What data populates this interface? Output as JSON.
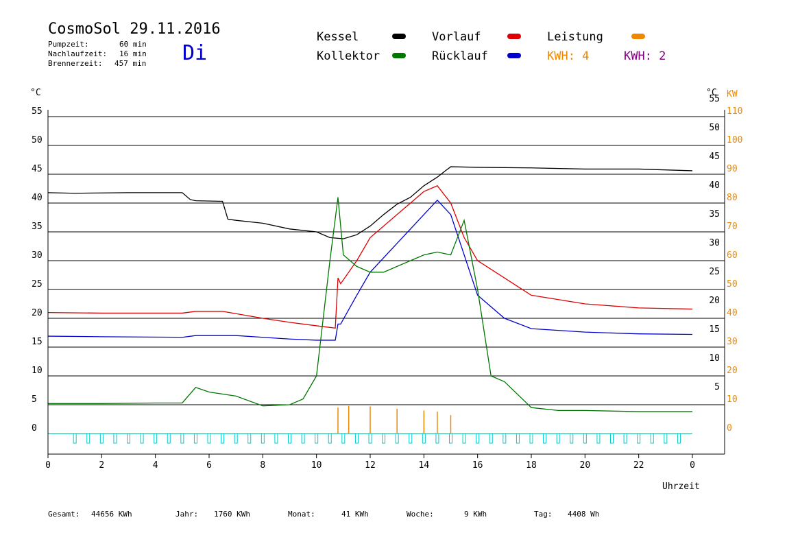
{
  "header": {
    "title": "CosmoSol 29.11.2016",
    "pumpzeit_label": "Pumpzeit:",
    "pumpzeit_value": "60 min",
    "nachlauf_label": "Nachlaufzeit:",
    "nachlauf_value": "16 min",
    "brenner_label": "Brennerzeit:",
    "brenner_value": "457 min",
    "weekday": "Di"
  },
  "legend": {
    "kessel": "Kessel",
    "vorlauf": "Vorlauf",
    "leistung": "Leistung",
    "kollektor": "Kollektor",
    "ruecklauf": "Rücklauf",
    "kwh1": "KWH: 4",
    "kwh2": "KWH: 2"
  },
  "axes": {
    "left_unit": "°C",
    "right_unit": "°C",
    "right_unit2": "KW",
    "x_label": "Uhrzeit"
  },
  "footer": {
    "gesamt_label": "Gesamt:",
    "gesamt_value": "44656 KWh",
    "jahr_label": "Jahr:",
    "jahr_value": "1760 KWh",
    "monat_label": "Monat:",
    "monat_value": "41 KWh",
    "woche_label": "Woche:",
    "woche_value": "9 KWh",
    "tag_label": "Tag:",
    "tag_value": "4408 Wh"
  },
  "colors": {
    "kessel": "#000000",
    "vorlauf": "#dd0000",
    "ruecklauf": "#0000cc",
    "kollektor": "#007700",
    "leistung": "#ee8800",
    "kwh2": "#800080",
    "pump": "#00cccc",
    "weekday": "#0000cc"
  },
  "chart_data": {
    "type": "line",
    "x_ticks": [
      "0",
      "2",
      "4",
      "6",
      "8",
      "10",
      "12",
      "14",
      "16",
      "18",
      "20",
      "22",
      "0"
    ],
    "xlim": [
      0,
      24
    ],
    "ylim": [
      0,
      55
    ],
    "y2lim": [
      0,
      110
    ],
    "y_ticks_left": [
      "0",
      "5",
      "10",
      "15",
      "20",
      "25",
      "30",
      "35",
      "40",
      "45",
      "50",
      "55"
    ],
    "y_ticks_right": [
      "5",
      "10",
      "15",
      "20",
      "25",
      "30",
      "35",
      "40",
      "45",
      "50",
      "55"
    ],
    "y2_ticks_right": [
      "0",
      "10",
      "20",
      "30",
      "40",
      "50",
      "60",
      "70",
      "80",
      "90",
      "100",
      "110"
    ],
    "grid": true,
    "series": [
      {
        "name": "Kessel",
        "x": [
          0,
          1,
          3,
          5.0,
          5.3,
          5.5,
          6.5,
          6.7,
          7,
          8,
          9,
          10,
          10.5,
          11,
          11.5,
          12,
          12.5,
          13,
          13.5,
          14,
          14.5,
          14.8,
          15,
          16,
          18,
          20,
          22,
          24
        ],
        "y": [
          41.8,
          41.7,
          41.8,
          41.8,
          40.6,
          40.4,
          40.3,
          37.2,
          37,
          36.5,
          35.5,
          35,
          34,
          33.8,
          34.5,
          36,
          38,
          39.8,
          41,
          43,
          44.5,
          45.6,
          46.3,
          46.2,
          46.1,
          45.9,
          45.9,
          45.6
        ]
      },
      {
        "name": "Vorlauf",
        "x": [
          0,
          2,
          5.0,
          5.5,
          6.5,
          7,
          8,
          9,
          10,
          10.7,
          10.8,
          10.9,
          11.5,
          12,
          13,
          14,
          14.5,
          15,
          15.5,
          16,
          17,
          18,
          20,
          22,
          24
        ],
        "y": [
          21,
          20.9,
          20.9,
          21.2,
          21.2,
          20.8,
          20,
          19.3,
          18.7,
          18.3,
          27,
          26,
          30,
          34,
          38,
          42,
          43,
          40,
          34,
          30,
          27,
          24,
          22.5,
          21.8,
          21.6
        ]
      },
      {
        "name": "Rücklauf",
        "x": [
          0,
          2,
          5.0,
          5.5,
          7,
          8,
          9,
          10,
          10.7,
          10.8,
          10.9,
          11.5,
          12,
          13,
          14,
          14.5,
          15,
          15.5,
          16,
          17,
          18,
          20,
          22,
          24
        ],
        "y": [
          16.9,
          16.8,
          16.7,
          17,
          17,
          16.7,
          16.4,
          16.2,
          16.2,
          19,
          19,
          24,
          28,
          33,
          38,
          40.5,
          38,
          31,
          24,
          20,
          18.2,
          17.6,
          17.3,
          17.2
        ]
      },
      {
        "name": "Kollektor",
        "x": [
          0,
          2,
          4,
          5.0,
          5.5,
          6,
          7,
          8,
          9,
          9.5,
          10,
          10.5,
          10.8,
          11,
          11.5,
          12,
          12.5,
          13,
          13.5,
          14,
          14.5,
          15,
          15.5,
          16,
          16.5,
          17,
          18,
          19,
          20,
          22,
          24
        ],
        "y": [
          5.2,
          5.2,
          5.3,
          5.3,
          8,
          7.2,
          6.5,
          4.8,
          5,
          6,
          10,
          30,
          41,
          31,
          29,
          28,
          28,
          29,
          30,
          31,
          31.5,
          31,
          37,
          25,
          10,
          9,
          4.5,
          4,
          4,
          3.8,
          3.8
        ]
      },
      {
        "name": "Leistung",
        "x": [
          10.8,
          11.2,
          12,
          13,
          14,
          14.5,
          15,
          15.2
        ],
        "y": [
          4.5,
          4.8,
          4.7,
          4.3,
          4.0,
          3.8,
          3.2,
          0
        ]
      }
    ]
  }
}
